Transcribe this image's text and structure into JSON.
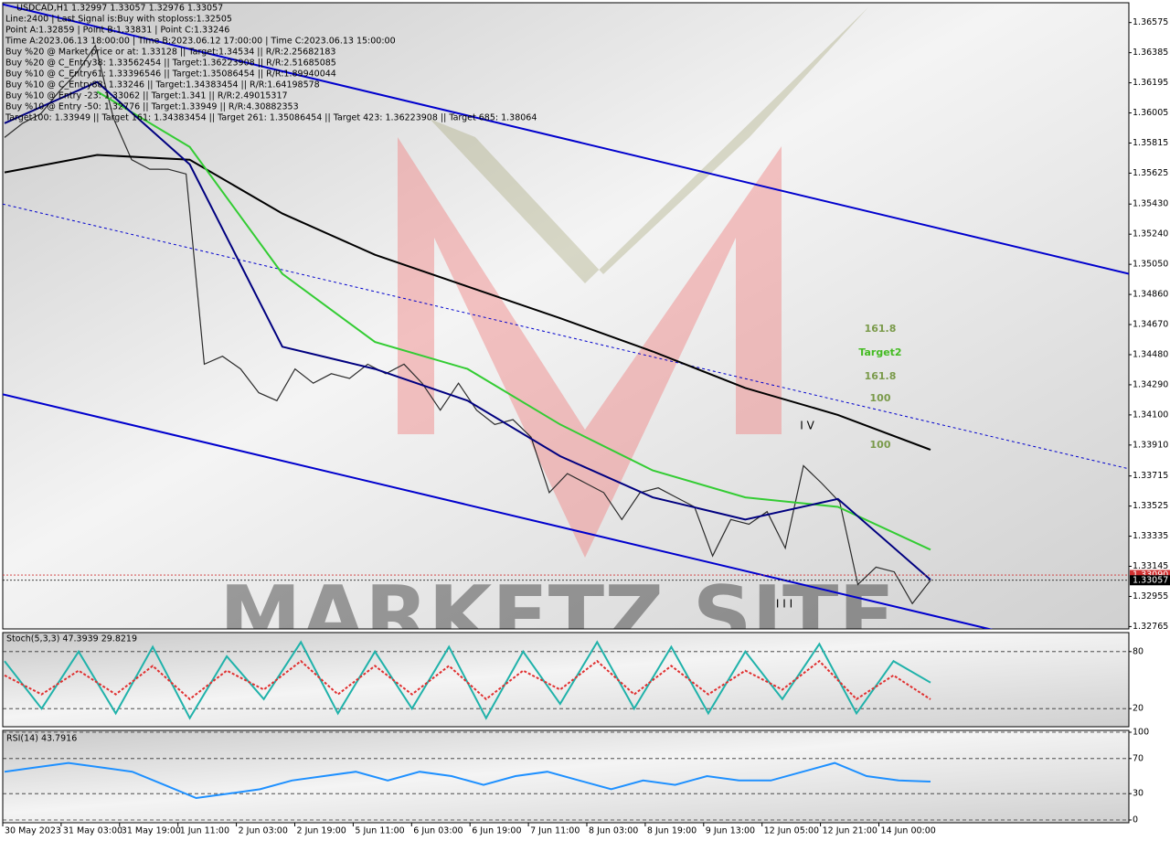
{
  "chart_data": [
    {
      "type": "line",
      "title": "USDCAD,H1  1.32997 1.33057 1.32976 1.33057",
      "info_lines": [
        "Line:2400 | Last Signal is:Buy with stoploss:1.32505",
        "Point A:1.32859 | Point B:1.33831 | Point C:1.33246",
        "Time A:2023.06.13 18:00:00 | Time B:2023.06.12 17:00:00 | Time C:2023.06.13 15:00:00",
        "Buy %20 @ Market price or at: 1.33128 || Target:1.34534 || R/R:2.25682183",
        "Buy %20 @ C_Entry38: 1.33562454 || Target:1.36223908 || R/R:2.51685085",
        "Buy %10 @ C_Entry61: 1.33396546 || Target:1.35086454 || R/R:1.89940044",
        "Buy %10 @ C_Entry88: 1.33246 || Target:1.34383454 || R/R:1.64198578",
        "Buy %10 @ Entry -23: 1.33062 || Target:1.341 || R/R:2.49015317",
        "Buy %10 @ Entry -50: 1.32776 || Target:1.33949 || R/R:4.30882353",
        "Target100: 1.33949 || Target 161: 1.34383454 || Target 261: 1.35086454 || Target 423: 1.36223908 || Target 685: 1.38064"
      ],
      "watermark": "MARKETZ SITE",
      "ylim": [
        1.3275,
        1.367
      ],
      "yticks": [
        1.36575,
        1.36385,
        1.36195,
        1.36005,
        1.35815,
        1.35625,
        {
          "value": 1.3543,
          "label": "1.35430"
        },
        {
          "value": 1.3524,
          "label": "1.35240"
        },
        {
          "value": 1.3505,
          "label": "1.35050"
        },
        {
          "value": 1.3486,
          "label": "1.34860"
        },
        {
          "value": 1.3467,
          "label": "1.34670"
        },
        {
          "value": 1.3448,
          "label": "1.34480"
        },
        {
          "value": 1.3429,
          "label": "1.34290"
        },
        {
          "value": 1.341,
          "label": "1.34100"
        },
        {
          "value": 1.3391,
          "label": "1.33910"
        },
        1.33715,
        1.33525,
        1.33335,
        1.33145,
        1.32955,
        1.32765
      ],
      "grid": false,
      "series": [
        {
          "color": "#2b2b2b",
          "values": [
            1.3585,
            1.3594,
            1.36,
            1.3614,
            1.3626,
            1.3643,
            1.3597,
            1.3571,
            1.3565,
            1.3565,
            1.3562,
            1.3442,
            1.3447,
            1.3439,
            1.3424,
            1.3419,
            1.3439,
            1.343,
            1.3436,
            1.3433,
            1.3442,
            1.3436,
            1.3442,
            1.343,
            1.3413,
            1.343,
            1.3413,
            1.3404,
            1.3407,
            1.3396,
            1.3361,
            1.3373,
            1.3367,
            1.3361,
            1.3344,
            1.3361,
            1.3364,
            1.3358,
            1.3352,
            1.3321,
            1.3344,
            1.3341,
            1.3349,
            1.3326,
            1.3378,
            1.3367,
            1.3355,
            1.3303,
            1.3314,
            1.3311,
            1.3291,
            1.33057
          ]
        },
        {
          "color": "#000000",
          "values": [
            1.3563,
            1.3574,
            1.3571,
            1.3537,
            1.3511,
            1.3491,
            1.3471,
            1.345,
            1.3427,
            1.341,
            1.3388
          ]
        },
        {
          "color": "#33cc33",
          "values": [
            null,
            1.3614,
            1.3579,
            1.3499,
            1.3456,
            1.3439,
            1.3404,
            1.3375,
            1.3358,
            1.3352,
            1.3325
          ]
        },
        {
          "color": "#000080",
          "values": [
            1.3594,
            1.362,
            1.3568,
            1.3453,
            1.3439,
            1.3419,
            1.3384,
            1.3358,
            1.3344,
            1.3357,
            1.3306
          ]
        }
      ],
      "channels": [
        {
          "color": "#0000cd",
          "dashed": false,
          "values": [
            1.3669,
            1.3499
          ]
        },
        {
          "color": "#0000cd",
          "dashed": true,
          "values": [
            1.3543,
            1.3376
          ]
        },
        {
          "color": "#0000cd",
          "dashed": false,
          "values": [
            1.3423,
            1.3254
          ]
        }
      ],
      "levels": [
        {
          "value": 1.3309,
          "label": "1.33090",
          "color": "#d03030"
        },
        {
          "value": 1.33057,
          "label": "1.33057",
          "color": "#000000"
        }
      ],
      "annotations": [
        "161.8",
        "Target2",
        "161.8",
        "100",
        "100"
      ],
      "wave_labels": [
        "I V",
        "I I I"
      ]
    },
    {
      "type": "line",
      "title": "Stoch(5,3,3) 47.3939 29.8219",
      "ylim": [
        0,
        100
      ],
      "yticks": [
        20,
        80
      ],
      "grid": true,
      "series": [
        {
          "color": "#20b2aa",
          "dashed": false,
          "values": [
            70,
            20,
            80,
            15,
            85,
            10,
            75,
            30,
            90,
            15,
            80,
            20,
            85,
            10,
            80,
            25,
            90,
            20,
            85,
            15,
            80,
            30,
            88,
            15,
            70,
            47.3939
          ]
        },
        {
          "color": "#e03030",
          "dashed": true,
          "values": [
            55,
            35,
            60,
            35,
            65,
            30,
            60,
            40,
            70,
            35,
            65,
            35,
            65,
            30,
            60,
            40,
            70,
            35,
            65,
            35,
            60,
            40,
            70,
            30,
            55,
            29.8219
          ]
        }
      ]
    },
    {
      "type": "line",
      "title": "RSI(14) 43.7916",
      "ylim": [
        0,
        100
      ],
      "yticks": [
        0,
        30,
        70,
        100
      ],
      "grid": true,
      "series": [
        {
          "color": "#1e90ff",
          "dashed": false,
          "values": [
            55,
            60,
            65,
            60,
            55,
            40,
            25,
            30,
            35,
            45,
            50,
            55,
            45,
            55,
            50,
            40,
            50,
            55,
            45,
            35,
            45,
            40,
            50,
            45,
            45,
            55,
            65,
            50,
            45,
            43.7916
          ]
        }
      ],
      "time_labels": [
        "30 May 2023",
        "31 May 03:00",
        "31 May 19:00",
        "1 Jun 11:00",
        "2 Jun 03:00",
        "2 Jun 19:00",
        "5 Jun 11:00",
        "6 Jun 03:00",
        "6 Jun 19:00",
        "7 Jun 11:00",
        "8 Jun 03:00",
        "8 Jun 19:00",
        "9 Jun 13:00",
        "12 Jun 05:00",
        "12 Jun 21:00",
        "14 Jun 00:00"
      ]
    }
  ]
}
